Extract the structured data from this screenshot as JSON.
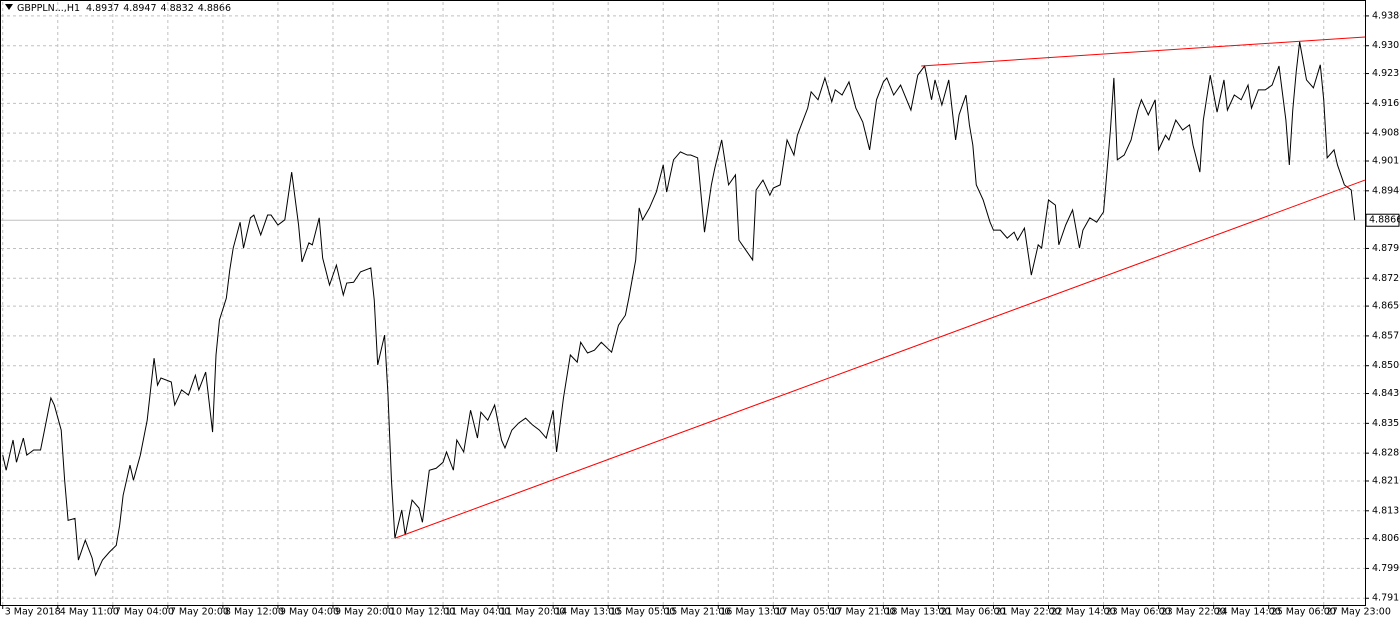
{
  "chart_data": {
    "type": "line",
    "title": "GBPPLN...,H1",
    "ohlc": [
      4.8937,
      4.8947,
      4.8832,
      4.8866
    ],
    "last_price": 4.8866,
    "color": "#000000",
    "grid": true,
    "xlim": [
      -0.5,
      396
    ],
    "ylim": [
      4.7898,
      4.9415
    ],
    "xticks": [
      {
        "value": 0,
        "label": "3 May 2018"
      },
      {
        "value": 16,
        "label": "4 May 11:00"
      },
      {
        "value": 32,
        "label": "7 May 04:00"
      },
      {
        "value": 48,
        "label": "7 May 20:00"
      },
      {
        "value": 64,
        "label": "8 May 12:00"
      },
      {
        "value": 80,
        "label": "9 May 04:00"
      },
      {
        "value": 96,
        "label": "9 May 20:00"
      },
      {
        "value": 112,
        "label": "10 May 12:00"
      },
      {
        "value": 128,
        "label": "11 May 04:00"
      },
      {
        "value": 144,
        "label": "11 May 20:00"
      },
      {
        "value": 160,
        "label": "14 May 13:00"
      },
      {
        "value": 176,
        "label": "15 May 05:00"
      },
      {
        "value": 192,
        "label": "15 May 21:00"
      },
      {
        "value": 208,
        "label": "16 May 13:00"
      },
      {
        "value": 224,
        "label": "17 May 05:00"
      },
      {
        "value": 240,
        "label": "17 May 21:00"
      },
      {
        "value": 256,
        "label": "18 May 13:00"
      },
      {
        "value": 272,
        "label": "21 May 06:00"
      },
      {
        "value": 288,
        "label": "21 May 22:00"
      },
      {
        "value": 304,
        "label": "22 May 14:00"
      },
      {
        "value": 320,
        "label": "23 May 06:00"
      },
      {
        "value": 336,
        "label": "23 May 22:00"
      },
      {
        "value": 352,
        "label": "24 May 14:00"
      },
      {
        "value": 368,
        "label": "25 May 06:00"
      },
      {
        "value": 384,
        "label": "27 May 23:00"
      }
    ],
    "yticks": [
      {
        "value": 4.938,
        "label": "4.9380"
      },
      4.9305,
      4.9235,
      {
        "value": 4.916,
        "label": "4.9160"
      },
      4.9085,
      4.9015,
      {
        "value": 4.894,
        "label": "4.8940"
      },
      4.8795,
      {
        "value": 4.872,
        "label": "4.8720"
      },
      {
        "value": 4.865,
        "label": "4.8650"
      },
      4.8575,
      {
        "value": 4.85,
        "label": "4.8500"
      },
      {
        "value": 4.843,
        "label": "4.8430"
      },
      4.8355,
      {
        "value": 4.828,
        "label": "4.8280"
      },
      {
        "value": 4.821,
        "label": "4.8210"
      },
      4.8135,
      4.8065,
      {
        "value": 4.799,
        "label": "4.7990"
      },
      4.7915
    ],
    "x": [
      0,
      1,
      3,
      4,
      6,
      7,
      9,
      11,
      14,
      15,
      17,
      18,
      19,
      21,
      22,
      24,
      26,
      27,
      29,
      31,
      33,
      34,
      35,
      37,
      38,
      40,
      42,
      44,
      45,
      46,
      49,
      50,
      52,
      54,
      56,
      57,
      59,
      61,
      62,
      63,
      65,
      66,
      67,
      69,
      70,
      72,
      73,
      75,
      77,
      78,
      80,
      82,
      84,
      86,
      87,
      89,
      90,
      92,
      93,
      95,
      97,
      99,
      100,
      102,
      104,
      107,
      108,
      109,
      111,
      112,
      113,
      114,
      116,
      117,
      119,
      121,
      122,
      124,
      126,
      128,
      129,
      131,
      132,
      134,
      136,
      138,
      139,
      141,
      143,
      145,
      146,
      148,
      150,
      152,
      154,
      156,
      158,
      160,
      161,
      163,
      165,
      167,
      168,
      170,
      172,
      174,
      177,
      179,
      181,
      182,
      184,
      185,
      186,
      188,
      190,
      192,
      193,
      195,
      197,
      199,
      200,
      202,
      204,
      206,
      207,
      209,
      211,
      213,
      214,
      216,
      218,
      219,
      221,
      223,
      224,
      226,
      228,
      230,
      231,
      234,
      235,
      237,
      239,
      241,
      242,
      244,
      246,
      248,
      250,
      252,
      254,
      256,
      257,
      259,
      261,
      263,
      264,
      266,
      268,
      270,
      271,
      273,
      275,
      277,
      278,
      280,
      281,
      282,
      283,
      285,
      287,
      288,
      290,
      292,
      294,
      295,
      297,
      299,
      301,
      302,
      304,
      306,
      307,
      309,
      311,
      313,
      314,
      316,
      318,
      320,
      322,
      323,
      324,
      326,
      328,
      330,
      331,
      333,
      335,
      336,
      338,
      339,
      341,
      343,
      345,
      346,
      348,
      349,
      351,
      353,
      355,
      356,
      358,
      360,
      362,
      363,
      365,
      367,
      369,
      371,
      373,
      374,
      375,
      376,
      377,
      379,
      381,
      383,
      384,
      385,
      387,
      388,
      390,
      392,
      393
    ],
    "values": [
      4.8275,
      4.8237,
      4.8313,
      4.8257,
      4.8318,
      4.8275,
      4.8288,
      4.8288,
      4.8419,
      4.8401,
      4.8338,
      4.8212,
      4.8111,
      4.8116,
      4.8011,
      4.8061,
      4.8016,
      4.7973,
      4.8011,
      4.8031,
      4.8048,
      4.8099,
      4.8174,
      4.825,
      4.8212,
      4.8275,
      4.8363,
      4.8519,
      4.8451,
      4.8469,
      4.8459,
      4.8401,
      4.8439,
      4.8426,
      4.8476,
      4.8439,
      4.8484,
      4.8333,
      4.8527,
      4.8615,
      4.867,
      4.8741,
      4.8796,
      4.8861,
      4.8796,
      4.8872,
      4.8879,
      4.8829,
      4.8879,
      4.8879,
      4.8854,
      4.8867,
      4.8987,
      4.8854,
      4.8761,
      4.8809,
      4.8804,
      4.8872,
      4.8771,
      4.8703,
      4.8753,
      4.8678,
      4.8708,
      4.871,
      4.8736,
      4.8746,
      4.8665,
      4.8502,
      4.8577,
      4.8426,
      4.8212,
      4.8066,
      4.8137,
      4.8074,
      4.8162,
      4.8142,
      4.8106,
      4.8237,
      4.8242,
      4.8257,
      4.8283,
      4.8237,
      4.8313,
      4.8283,
      4.8388,
      4.8318,
      4.8383,
      4.8363,
      4.8401,
      4.8313,
      4.8293,
      4.8338,
      4.8356,
      4.8368,
      4.8351,
      4.8338,
      4.8318,
      4.8388,
      4.8283,
      4.8419,
      4.8527,
      4.8509,
      4.8559,
      4.8532,
      4.8539,
      4.8559,
      4.8534,
      4.8602,
      4.8627,
      4.867,
      4.8766,
      4.8897,
      4.8867,
      4.8897,
      4.8937,
      4.9005,
      4.8937,
      4.9018,
      4.9038,
      4.903,
      4.903,
      4.9023,
      4.8836,
      4.8955,
      4.8997,
      4.9068,
      4.8955,
      4.898,
      4.8816,
      4.8791,
      4.8766,
      4.8942,
      4.8967,
      4.8929,
      4.8947,
      4.8955,
      4.9068,
      4.903,
      4.908,
      4.9148,
      4.9189,
      4.9169,
      4.9224,
      4.9164,
      4.9194,
      4.9181,
      4.9214,
      4.9148,
      4.9113,
      4.9043,
      4.9169,
      4.9214,
      4.9224,
      4.9181,
      4.9206,
      4.9164,
      4.9143,
      4.9231,
      4.9254,
      4.9169,
      4.9219,
      4.9156,
      4.9219,
      4.9068,
      4.9131,
      4.9181,
      4.9106,
      4.9055,
      4.8955,
      4.8917,
      4.8861,
      4.8841,
      4.8841,
      4.8821,
      4.8836,
      4.8816,
      4.8846,
      4.8728,
      4.8804,
      4.8796,
      4.8917,
      4.8904,
      4.8804,
      4.8854,
      4.8892,
      4.8796,
      4.8841,
      4.8872,
      4.8861,
      4.8887,
      4.9093,
      4.9224,
      4.9018,
      4.903,
      4.9068,
      4.9143,
      4.9169,
      4.9131,
      4.9169,
      4.9043,
      4.908,
      4.9068,
      4.9118,
      4.9093,
      4.9106,
      4.9055,
      4.8987,
      4.9118,
      4.9231,
      4.9138,
      4.9219,
      4.9143,
      4.9181,
      4.9169,
      4.9206,
      4.9148,
      4.9194,
      4.9194,
      4.9206,
      4.9254,
      4.9118,
      4.9005,
      4.9143,
      4.9239,
      4.9315,
      4.9219,
      4.9199,
      4.9257,
      4.9169,
      4.9023,
      4.9043,
      4.9005,
      4.8955,
      4.8942,
      4.8866
    ],
    "trendlines": [
      {
        "color": "#ff0000",
        "x": [
          114,
          396
        ],
        "y": [
          4.8066,
          4.8967
        ]
      },
      {
        "color": "#ff0000",
        "x": [
          267,
          396
        ],
        "y": [
          4.9254,
          4.9327
        ]
      }
    ]
  }
}
